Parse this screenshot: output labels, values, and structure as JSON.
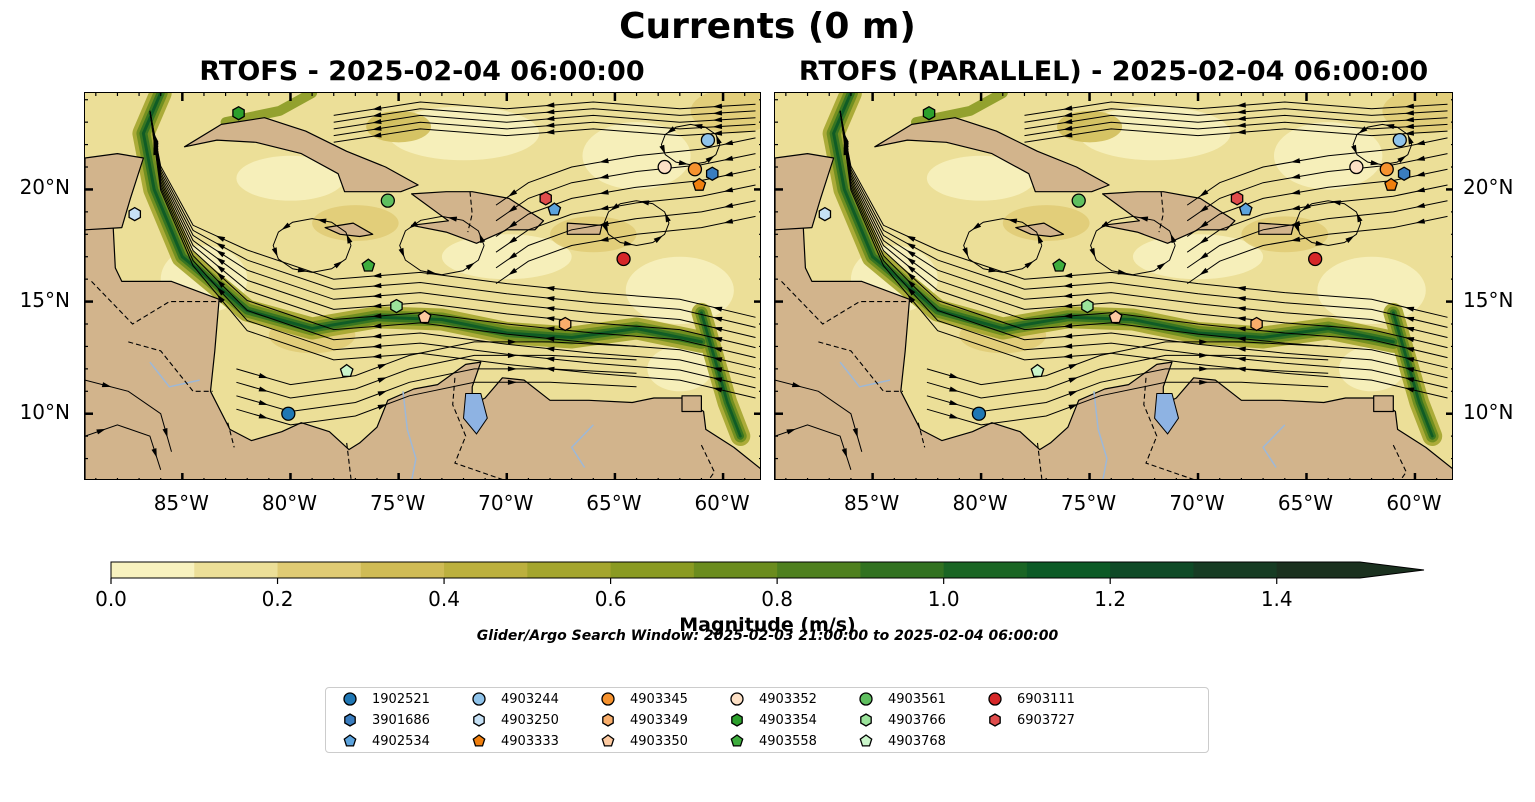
{
  "figure": {
    "suptitle": "Currents (0 m)",
    "left_title": "RTOFS - 2025-02-04 06:00:00",
    "right_title": "RTOFS (PARALLEL) - 2025-02-04 06:00:00",
    "search_window": "Glider/Argo Search Window: 2025-02-03 21:00:00 to 2025-02-04 06:00:00"
  },
  "axes": {
    "lon_range": [
      -89.5,
      -58.2
    ],
    "lat_range": [
      7.0,
      24.3
    ],
    "lon_ticks": [
      "85°W",
      "80°W",
      "75°W",
      "70°W",
      "65°W",
      "60°W"
    ],
    "lon_tick_values": [
      -85,
      -80,
      -75,
      -70,
      -65,
      -60
    ],
    "lat_ticks": [
      "10°N",
      "15°N",
      "20°N"
    ],
    "lat_tick_values": [
      10,
      15,
      20
    ]
  },
  "colorbar": {
    "label": "Magnitude (m/s)",
    "min": 0.0,
    "max": 1.5,
    "extend": "max",
    "tick_labels": [
      "0.0",
      "0.2",
      "0.4",
      "0.6",
      "0.8",
      "1.0",
      "1.2",
      "1.4"
    ],
    "tick_values": [
      0.0,
      0.2,
      0.4,
      0.6,
      0.8,
      1.0,
      1.2,
      1.4
    ],
    "colors": [
      "#f8f2bf",
      "#ecdf98",
      "#e0cb74",
      "#cfbb55",
      "#bcb03e",
      "#a4a52e",
      "#8a9a22",
      "#6b8c1e",
      "#4f801f",
      "#327221",
      "#1a6524",
      "#0c5a26",
      "#0f4a27",
      "#173c24",
      "#1b311f"
    ],
    "land_color": "#d2b48c",
    "lake_color": "#8eb3e3"
  },
  "floats": [
    {
      "id": "1902521",
      "marker": "circle",
      "color": "#1f77b4",
      "left": [
        -80.1,
        10.0
      ],
      "right": [
        -80.1,
        10.0
      ]
    },
    {
      "id": "3901686",
      "marker": "hexagon",
      "color": "#3a7dbf",
      "left": [
        -60.5,
        20.7
      ],
      "right": [
        -60.5,
        20.7
      ]
    },
    {
      "id": "4902534",
      "marker": "pentagon",
      "color": "#5ca3dd",
      "left": [
        -67.8,
        19.1
      ],
      "right": [
        -67.8,
        19.1
      ]
    },
    {
      "id": "4903244",
      "marker": "circle",
      "color": "#8fc3ea",
      "left": [
        -60.7,
        22.2
      ],
      "right": [
        -60.7,
        22.2
      ]
    },
    {
      "id": "4903250",
      "marker": "hexagon",
      "color": "#c6e1f5",
      "left": [
        -87.2,
        18.9
      ],
      "right": [
        -87.2,
        18.9
      ]
    },
    {
      "id": "4903333",
      "marker": "pentagon",
      "color": "#f07f0e",
      "left": [
        -61.1,
        20.2
      ],
      "right": [
        -61.1,
        20.2
      ]
    },
    {
      "id": "4903345",
      "marker": "circle",
      "color": "#f6922e",
      "left": [
        -61.3,
        20.9
      ],
      "right": [
        -61.3,
        20.9
      ]
    },
    {
      "id": "4903349",
      "marker": "hexagon",
      "color": "#f9ae6b",
      "left": [
        -67.3,
        14.0
      ],
      "right": [
        -67.3,
        14.0
      ]
    },
    {
      "id": "4903350",
      "marker": "pentagon",
      "color": "#fdcaa1",
      "left": [
        -73.8,
        14.3
      ],
      "right": [
        -73.8,
        14.3
      ]
    },
    {
      "id": "4903352",
      "marker": "circle",
      "color": "#fde0c5",
      "left": [
        -62.7,
        21.0
      ],
      "right": [
        -62.7,
        21.0
      ]
    },
    {
      "id": "4903354",
      "marker": "hexagon",
      "color": "#2ca02c",
      "left": [
        -82.4,
        23.4
      ],
      "right": [
        -82.4,
        23.4
      ]
    },
    {
      "id": "4903558",
      "marker": "pentagon",
      "color": "#3ead3e",
      "left": [
        -76.4,
        16.6
      ],
      "right": [
        -76.4,
        16.6
      ]
    },
    {
      "id": "4903561",
      "marker": "circle",
      "color": "#5fbf5f",
      "left": [
        -75.5,
        19.5
      ],
      "right": [
        -75.5,
        19.5
      ]
    },
    {
      "id": "4903766",
      "marker": "hexagon",
      "color": "#9be39b",
      "left": [
        -75.1,
        14.8
      ],
      "right": [
        -75.1,
        14.8
      ]
    },
    {
      "id": "4903768",
      "marker": "pentagon",
      "color": "#caf5ca",
      "left": [
        -77.4,
        11.9
      ],
      "right": [
        -77.4,
        11.9
      ]
    },
    {
      "id": "6903111",
      "marker": "circle",
      "color": "#d62728",
      "left": [
        -64.6,
        16.9
      ],
      "right": [
        -64.6,
        16.9
      ]
    },
    {
      "id": "6903727",
      "marker": "hexagon",
      "color": "#e04c4c",
      "left": [
        -68.2,
        19.6
      ],
      "right": [
        -68.2,
        19.6
      ]
    }
  ]
}
